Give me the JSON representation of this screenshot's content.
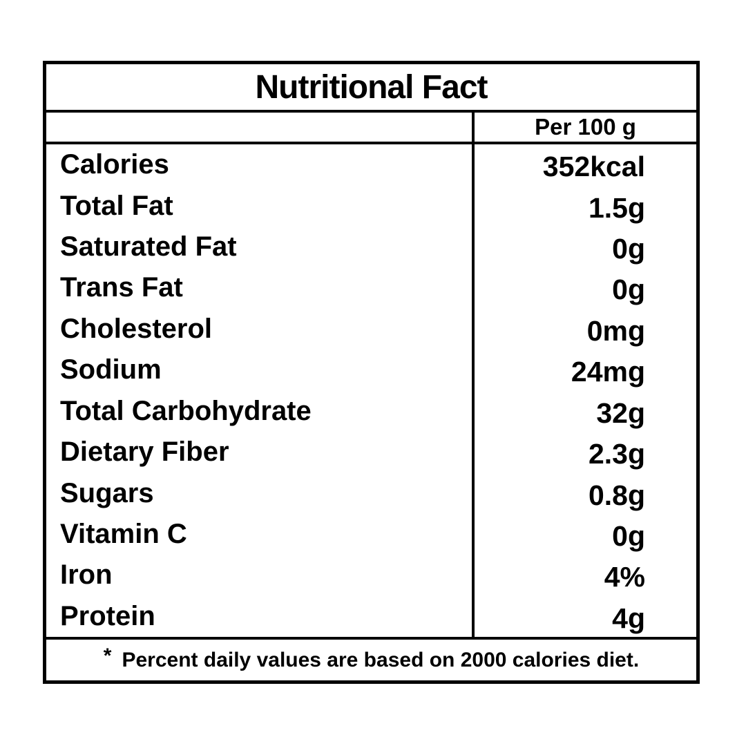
{
  "label": {
    "title": "Nutritional Fact",
    "column_header": "Per 100 g",
    "rows": [
      {
        "label": "Calories",
        "value": "352kcal"
      },
      {
        "label": "Total Fat",
        "value": "1.5g"
      },
      {
        "label": "Saturated Fat",
        "value": "0g"
      },
      {
        "label": "Trans Fat",
        "value": "0g"
      },
      {
        "label": "Cholesterol",
        "value": "0mg"
      },
      {
        "label": "Sodium",
        "value": "24mg"
      },
      {
        "label": "Total Carbohydrate",
        "value": "32g"
      },
      {
        "label": "Dietary Fiber",
        "value": "2.3g"
      },
      {
        "label": "Sugars",
        "value": "0.8g"
      },
      {
        "label": "Vitamin C",
        "value": "0g"
      },
      {
        "label": "Iron",
        "value": "4%"
      },
      {
        "label": "Protein",
        "value": "4g"
      }
    ],
    "footnote": {
      "marker": "*",
      "text": "Percent daily values are based on 2000 calories diet."
    }
  },
  "colors": {
    "ink": "#000000",
    "background": "#ffffff"
  }
}
